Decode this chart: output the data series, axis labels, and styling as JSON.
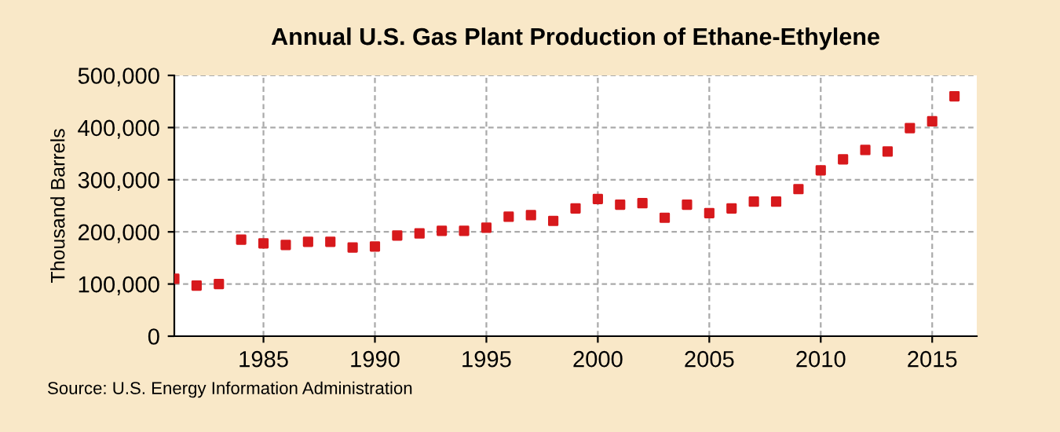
{
  "chart_data": {
    "type": "scatter",
    "title": "Annual U.S. Gas Plant Production of Ethane-Ethylene",
    "ylabel": "Thousand Barrels",
    "x": [
      1981,
      1982,
      1983,
      1984,
      1985,
      1986,
      1987,
      1988,
      1989,
      1990,
      1991,
      1992,
      1993,
      1994,
      1995,
      1996,
      1997,
      1998,
      1999,
      2000,
      2001,
      2002,
      2003,
      2004,
      2005,
      2006,
      2007,
      2008,
      2009,
      2010,
      2011,
      2012,
      2013,
      2014,
      2015,
      2016
    ],
    "series": [
      {
        "color": "#d7191c",
        "values": [
          110000,
          97000,
          100000,
          185000,
          178000,
          175000,
          181000,
          181000,
          170000,
          172000,
          193000,
          197000,
          202000,
          202000,
          208000,
          229000,
          232000,
          221000,
          245000,
          263000,
          252000,
          255000,
          227000,
          252000,
          236000,
          245000,
          258000,
          258000,
          282000,
          318000,
          339000,
          357000,
          354000,
          399000,
          412000,
          460000
        ]
      }
    ],
    "xlim": [
      1981,
      2017
    ],
    "xticks": [
      1985,
      1990,
      1995,
      2000,
      2005,
      2010,
      2015
    ],
    "ylim": [
      0,
      500000
    ],
    "yticks": [
      {
        "value": 0,
        "label": "0"
      },
      {
        "value": 100000,
        "label": "100,000"
      },
      {
        "value": 200000,
        "label": "200,000"
      },
      {
        "value": 300000,
        "label": "300,000"
      },
      {
        "value": 400000,
        "label": "400,000"
      },
      {
        "value": 500000,
        "label": "500,000"
      }
    ],
    "grid": true,
    "marker": "square",
    "legend": false,
    "annotations": [
      "Source: U.S. Energy Information Administration"
    ]
  }
}
